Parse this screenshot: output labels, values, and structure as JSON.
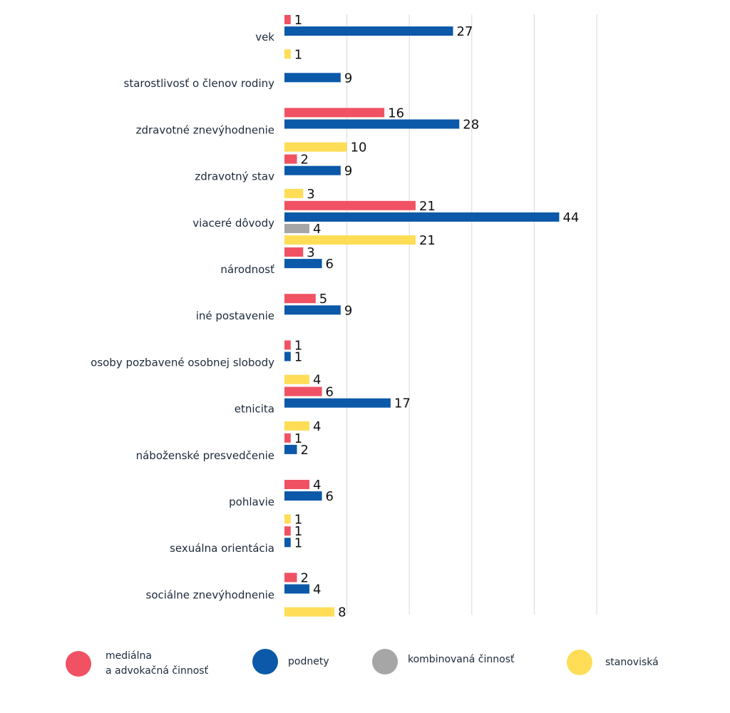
{
  "chart_data": {
    "type": "bar",
    "orientation": "horizontal",
    "title": "",
    "xlabel": "",
    "ylabel": "",
    "xlim": [
      0,
      50
    ],
    "grid": true,
    "legend_position": "bottom",
    "categories": [
      "vek",
      "starostlivosť o členov rodiny",
      "zdravotné znevýhodnenie",
      "zdravotný stav",
      "viaceré dôvody",
      "národnosť",
      "iné postavenie",
      "osoby pozbavené osobnej slobody",
      "etnicita",
      "náboženské presvedčenie",
      "pohlavie",
      "sexuálna orientácia",
      "sociálne znevýhodnenie"
    ],
    "series": [
      {
        "name": "mediálna\na advokačná činnosť",
        "color": "#f05263",
        "values": [
          1,
          null,
          16,
          2,
          21,
          3,
          5,
          1,
          6,
          1,
          4,
          1,
          2
        ]
      },
      {
        "name": "podnety",
        "color": "#0b59a8",
        "values": [
          27,
          9,
          28,
          9,
          44,
          6,
          9,
          1,
          17,
          2,
          6,
          1,
          4
        ]
      },
      {
        "name": "kombinovaná činnosť",
        "color": "#a6a6a6",
        "values": [
          null,
          null,
          null,
          null,
          4,
          null,
          null,
          null,
          null,
          null,
          null,
          null,
          null
        ]
      },
      {
        "name": "stanoviská",
        "color": "#ffdd57",
        "values": [
          1,
          null,
          10,
          3,
          21,
          null,
          null,
          4,
          4,
          null,
          1,
          null,
          8
        ]
      }
    ]
  }
}
